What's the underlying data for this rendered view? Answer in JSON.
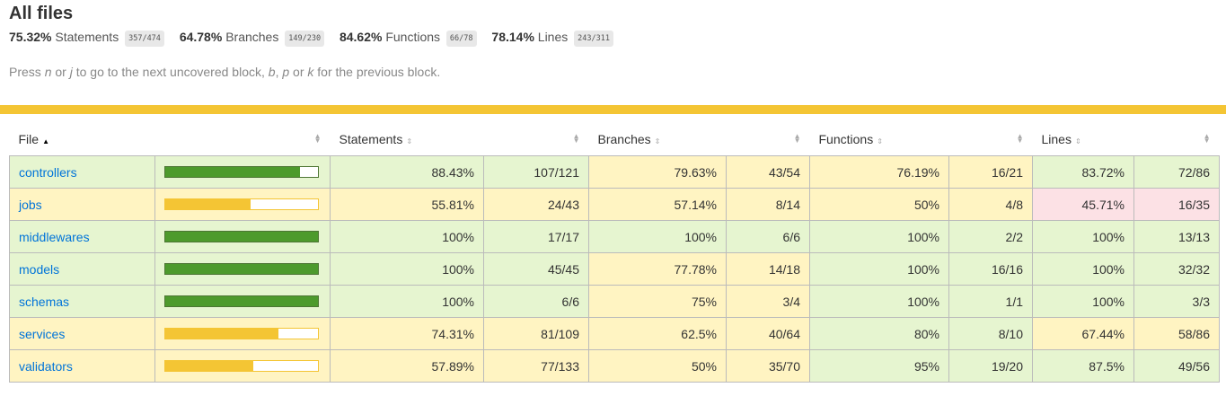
{
  "page": {
    "title": "All files",
    "hint_parts": [
      "Press ",
      "n",
      " or ",
      "j",
      " to go to the next uncovered block, ",
      "b",
      ", ",
      "p",
      " or ",
      "k",
      " for the previous block."
    ]
  },
  "summary": [
    {
      "pct": "75.32%",
      "label": "Statements",
      "fraction": "357/474"
    },
    {
      "pct": "64.78%",
      "label": "Branches",
      "fraction": "149/230"
    },
    {
      "pct": "84.62%",
      "label": "Functions",
      "fraction": "66/78"
    },
    {
      "pct": "78.14%",
      "label": "Lines",
      "fraction": "243/311"
    }
  ],
  "colors": {
    "high": "#e6f5d0",
    "medium": "#fff4c2",
    "low": "#fce1e5",
    "bar_high": "#4d9a2c",
    "bar_medium": "#f4c534",
    "divider": "#f4c534",
    "link": "#0074D9"
  },
  "table": {
    "headers": {
      "file": "File",
      "statements": "Statements",
      "branches": "Branches",
      "functions": "Functions",
      "lines": "Lines"
    },
    "rows": [
      {
        "file": "controllers",
        "pct_fill": 0.8843,
        "level": "high",
        "statements": {
          "pct": "88.43%",
          "frac": "107/121",
          "level": "high"
        },
        "branches": {
          "pct": "79.63%",
          "frac": "43/54",
          "level": "medium"
        },
        "functions": {
          "pct": "76.19%",
          "frac": "16/21",
          "level": "medium"
        },
        "lines": {
          "pct": "83.72%",
          "frac": "72/86",
          "level": "high"
        }
      },
      {
        "file": "jobs",
        "pct_fill": 0.5581,
        "level": "medium",
        "statements": {
          "pct": "55.81%",
          "frac": "24/43",
          "level": "medium"
        },
        "branches": {
          "pct": "57.14%",
          "frac": "8/14",
          "level": "medium"
        },
        "functions": {
          "pct": "50%",
          "frac": "4/8",
          "level": "medium"
        },
        "lines": {
          "pct": "45.71%",
          "frac": "16/35",
          "level": "low"
        }
      },
      {
        "file": "middlewares",
        "pct_fill": 1.0,
        "level": "high",
        "statements": {
          "pct": "100%",
          "frac": "17/17",
          "level": "high"
        },
        "branches": {
          "pct": "100%",
          "frac": "6/6",
          "level": "high"
        },
        "functions": {
          "pct": "100%",
          "frac": "2/2",
          "level": "high"
        },
        "lines": {
          "pct": "100%",
          "frac": "13/13",
          "level": "high"
        }
      },
      {
        "file": "models",
        "pct_fill": 1.0,
        "level": "high",
        "statements": {
          "pct": "100%",
          "frac": "45/45",
          "level": "high"
        },
        "branches": {
          "pct": "77.78%",
          "frac": "14/18",
          "level": "medium"
        },
        "functions": {
          "pct": "100%",
          "frac": "16/16",
          "level": "high"
        },
        "lines": {
          "pct": "100%",
          "frac": "32/32",
          "level": "high"
        }
      },
      {
        "file": "schemas",
        "pct_fill": 1.0,
        "level": "high",
        "statements": {
          "pct": "100%",
          "frac": "6/6",
          "level": "high"
        },
        "branches": {
          "pct": "75%",
          "frac": "3/4",
          "level": "medium"
        },
        "functions": {
          "pct": "100%",
          "frac": "1/1",
          "level": "high"
        },
        "lines": {
          "pct": "100%",
          "frac": "3/3",
          "level": "high"
        }
      },
      {
        "file": "services",
        "pct_fill": 0.7431,
        "level": "medium",
        "statements": {
          "pct": "74.31%",
          "frac": "81/109",
          "level": "medium"
        },
        "branches": {
          "pct": "62.5%",
          "frac": "40/64",
          "level": "medium"
        },
        "functions": {
          "pct": "80%",
          "frac": "8/10",
          "level": "high"
        },
        "lines": {
          "pct": "67.44%",
          "frac": "58/86",
          "level": "medium"
        }
      },
      {
        "file": "validators",
        "pct_fill": 0.5789,
        "level": "medium",
        "statements": {
          "pct": "57.89%",
          "frac": "77/133",
          "level": "medium"
        },
        "branches": {
          "pct": "50%",
          "frac": "35/70",
          "level": "medium"
        },
        "functions": {
          "pct": "95%",
          "frac": "19/20",
          "level": "high"
        },
        "lines": {
          "pct": "87.5%",
          "frac": "49/56",
          "level": "high"
        }
      }
    ]
  }
}
